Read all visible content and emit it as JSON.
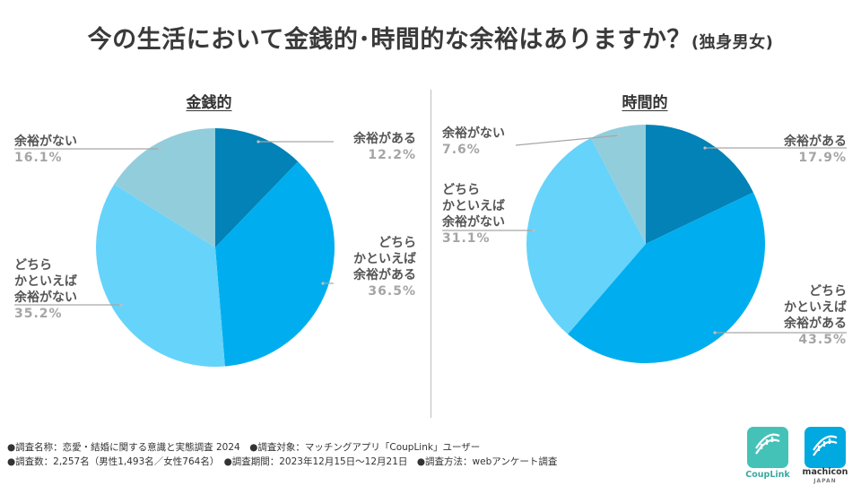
{
  "title": {
    "main": "今の生活において金銭的･時間的な余裕はありますか？",
    "sub": "(独身男女)"
  },
  "colors": {
    "c1": "#0282B6",
    "c2": "#00AEEF",
    "c3": "#66D3FA",
    "c4": "#92CDDC",
    "line": "#a6a6a6"
  },
  "chart_data": [
    {
      "type": "pie",
      "title": "金銭的",
      "slices": [
        {
          "label": "余裕がある",
          "value": 12.2,
          "pct": "12.2%"
        },
        {
          "label": "どちら\nかといえば\n余裕がある",
          "value": 36.5,
          "pct": "36.5%"
        },
        {
          "label": "どちら\nかといえば\n余裕がない",
          "value": 35.2,
          "pct": "35.2%"
        },
        {
          "label": "余裕がない",
          "value": 16.1,
          "pct": "16.1%"
        }
      ]
    },
    {
      "type": "pie",
      "title": "時間的",
      "slices": [
        {
          "label": "余裕がある",
          "value": 17.9,
          "pct": "17.9%"
        },
        {
          "label": "どちら\nかといえば\n余裕がある",
          "value": 43.5,
          "pct": "43.5%"
        },
        {
          "label": "どちら\nかといえば\n余裕がない",
          "value": 31.1,
          "pct": "31.1%"
        },
        {
          "label": "余裕がない",
          "value": 7.6,
          "pct": "7.6%"
        }
      ]
    }
  ],
  "footer": {
    "line1": "●調査名称：恋愛・結婚に関する意識と実態調査 2024　●調査対象：マッチングアプリ「CoupLink」ユーザー",
    "line2": "●調査数：2,257名（男性1,493名／女性764名）　●調査期間：2023年12月15日～12月21日　●調査方法：webアンケート調査"
  },
  "logos": {
    "couplink": "CoupLink",
    "machicon": "machicon",
    "machicon_sub": "JAPAN"
  }
}
